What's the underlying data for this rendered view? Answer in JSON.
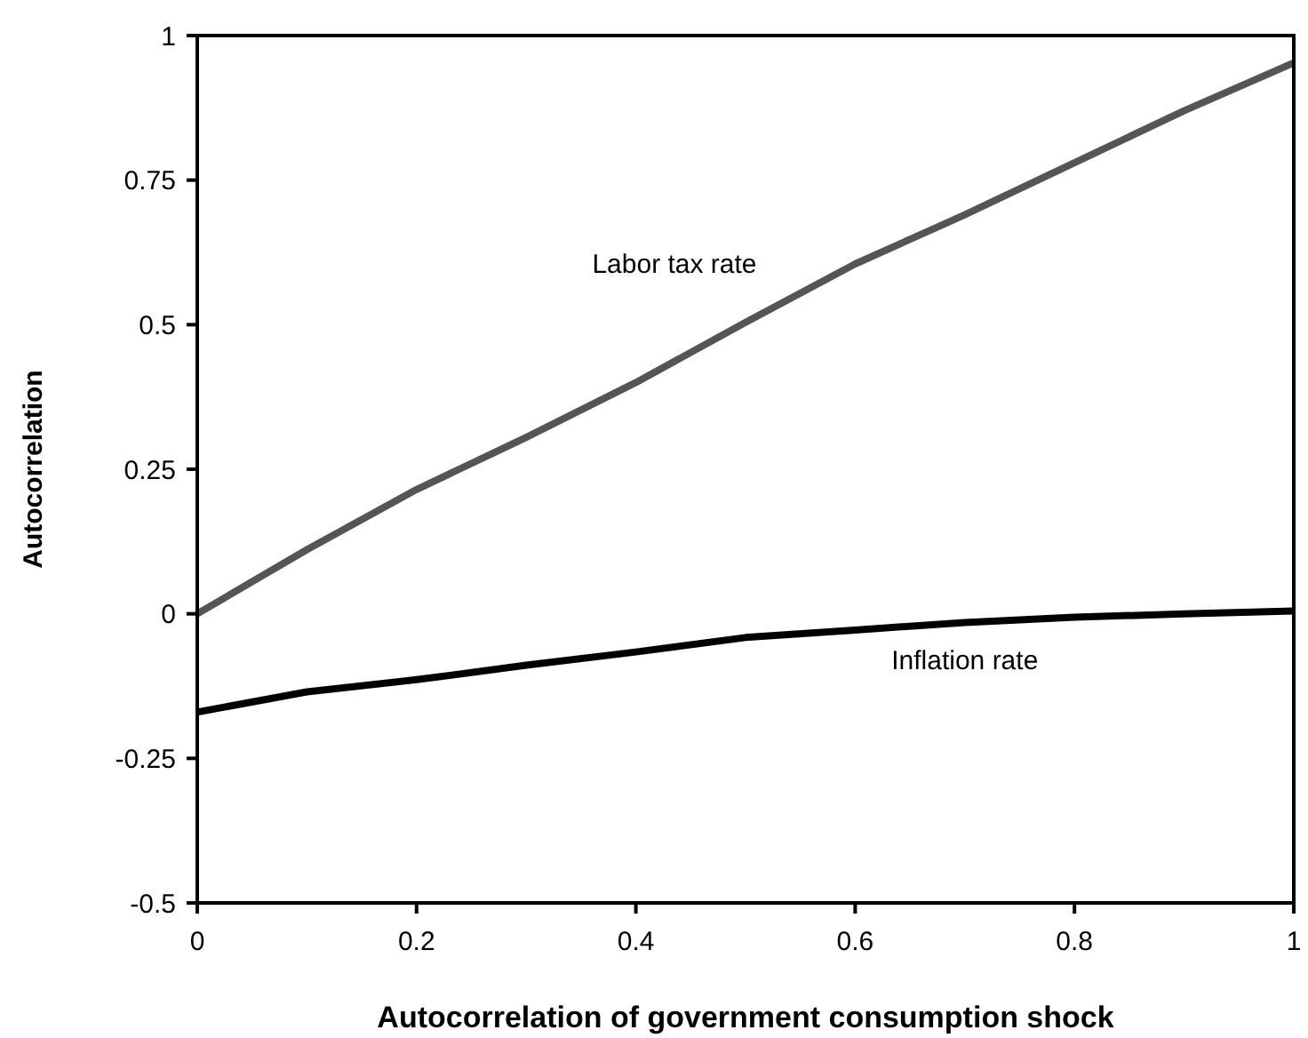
{
  "chart_data": {
    "type": "line",
    "xlabel": "Autocorrelation of government consumption shock",
    "ylabel": "Autocorrelation",
    "x": [
      0,
      0.1,
      0.2,
      0.3,
      0.4,
      0.5,
      0.6,
      0.7,
      0.8,
      0.9,
      1
    ],
    "series": [
      {
        "name": "Labor tax rate",
        "color": "#555555",
        "values": [
          0,
          0.111,
          0.215,
          0.305,
          0.4,
          0.504,
          0.605,
          0.69,
          0.78,
          0.87,
          0.953
        ]
      },
      {
        "name": "Inflation rate",
        "color": "#000000",
        "values": [
          -0.17,
          -0.135,
          -0.114,
          -0.089,
          -0.066,
          -0.041,
          -0.028,
          -0.015,
          -0.006,
          0,
          0.005
        ]
      }
    ],
    "xlim": [
      0,
      1
    ],
    "xticks": [
      0,
      0.2,
      0.4,
      0.6,
      0.8,
      1
    ],
    "ylim": [
      -0.5,
      1
    ],
    "yticks": [
      -0.5,
      -0.25,
      0,
      0.25,
      0.5,
      0.75,
      1
    ],
    "grid": false,
    "legend": false,
    "marker": "none",
    "line_style": "solid"
  }
}
